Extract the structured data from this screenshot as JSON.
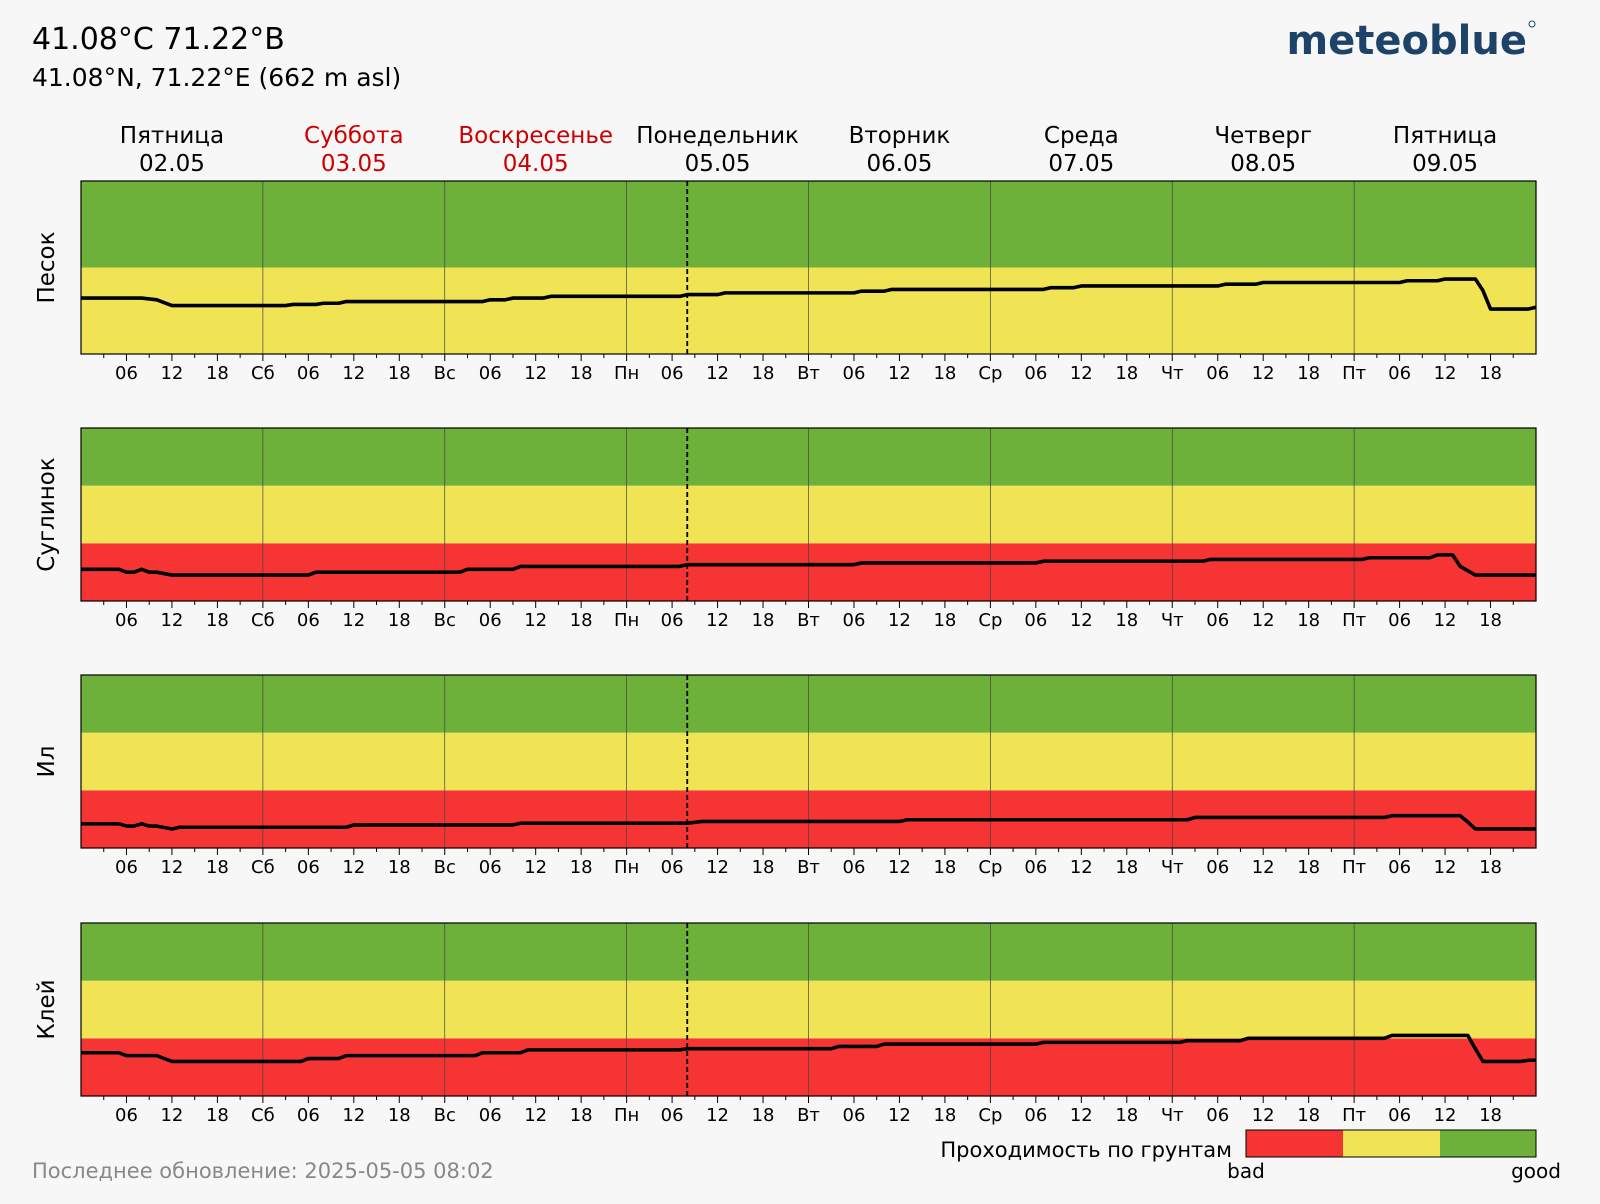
{
  "header": {
    "title": "41.08°C 71.22°B",
    "subtitle": "41.08°N, 71.22°E (662 m asl)",
    "logo": "meteoblue"
  },
  "days": [
    {
      "name": "Пятница",
      "date": "02.05",
      "weekend": false
    },
    {
      "name": "Суббота",
      "date": "03.05",
      "weekend": true
    },
    {
      "name": "Воскресенье",
      "date": "04.05",
      "weekend": true
    },
    {
      "name": "Понедельник",
      "date": "05.05",
      "weekend": false
    },
    {
      "name": "Вторник",
      "date": "06.05",
      "weekend": false
    },
    {
      "name": "Среда",
      "date": "07.05",
      "weekend": false
    },
    {
      "name": "Четверг",
      "date": "08.05",
      "weekend": false
    },
    {
      "name": "Пятница",
      "date": "09.05",
      "weekend": false
    }
  ],
  "colors": {
    "bad": "#f73434",
    "medium": "#f0e454",
    "good": "#6db03a",
    "weekend_text": "#cc0000",
    "line": "#000000",
    "footer_text": "#888888"
  },
  "legend": {
    "title": "Проходимость по грунтам",
    "bad_label": "bad",
    "good_label": "good"
  },
  "footer": {
    "last_update": "Последнее обновление: 2025-05-05 08:02"
  },
  "chart_data": {
    "type": "line",
    "x_axis": {
      "unit": "hour",
      "range_hours": [
        0,
        192
      ],
      "now_hour": 80,
      "tick_labels": [
        "06",
        "12",
        "18",
        "Сб",
        "06",
        "12",
        "18",
        "Вс",
        "06",
        "12",
        "18",
        "Пн",
        "06",
        "12",
        "18",
        "Вт",
        "06",
        "12",
        "18",
        "Ср",
        "06",
        "12",
        "18",
        "Чт",
        "06",
        "12",
        "18",
        "Пт",
        "06",
        "12",
        "18"
      ],
      "grid": "vertical lines at day boundaries"
    },
    "y_axis": {
      "range": [
        0,
        3
      ],
      "tick_labels": false
    },
    "panels": [
      {
        "name": "Песок",
        "bands": [
          {
            "rating": "medium",
            "from": 0,
            "to": 1.5
          },
          {
            "rating": "good",
            "from": 1.5,
            "to": 3
          }
        ],
        "series": [
          [
            0,
            0.97
          ],
          [
            8,
            0.97
          ],
          [
            10,
            0.94
          ],
          [
            12,
            0.84
          ],
          [
            27,
            0.84
          ],
          [
            28,
            0.86
          ],
          [
            31,
            0.86
          ],
          [
            32,
            0.88
          ],
          [
            34,
            0.88
          ],
          [
            35,
            0.91
          ],
          [
            53,
            0.91
          ],
          [
            54,
            0.94
          ],
          [
            56,
            0.94
          ],
          [
            57,
            0.97
          ],
          [
            61,
            0.97
          ],
          [
            62,
            1.0
          ],
          [
            79,
            1.0
          ],
          [
            80,
            1.03
          ],
          [
            84,
            1.03
          ],
          [
            85,
            1.06
          ],
          [
            102,
            1.06
          ],
          [
            103,
            1.09
          ],
          [
            106,
            1.09
          ],
          [
            107,
            1.12
          ],
          [
            127,
            1.12
          ],
          [
            128,
            1.15
          ],
          [
            131,
            1.15
          ],
          [
            132,
            1.18
          ],
          [
            150,
            1.18
          ],
          [
            151,
            1.21
          ],
          [
            155,
            1.21
          ],
          [
            156,
            1.24
          ],
          [
            174,
            1.24
          ],
          [
            175,
            1.27
          ],
          [
            179,
            1.27
          ],
          [
            180,
            1.3
          ],
          [
            184,
            1.3
          ],
          [
            185,
            1.1
          ],
          [
            186,
            0.78
          ],
          [
            191,
            0.78
          ],
          [
            192,
            0.81
          ]
        ]
      },
      {
        "name": "Суглинок",
        "bands": [
          {
            "rating": "bad",
            "from": 0,
            "to": 1
          },
          {
            "rating": "medium",
            "from": 1,
            "to": 2
          },
          {
            "rating": "good",
            "from": 2,
            "to": 3
          }
        ],
        "series": [
          [
            0,
            0.55
          ],
          [
            5,
            0.55
          ],
          [
            6,
            0.5
          ],
          [
            7,
            0.5
          ],
          [
            8,
            0.55
          ],
          [
            9,
            0.5
          ],
          [
            10,
            0.5
          ],
          [
            12,
            0.45
          ],
          [
            30,
            0.45
          ],
          [
            31,
            0.5
          ],
          [
            50,
            0.5
          ],
          [
            51,
            0.55
          ],
          [
            57,
            0.55
          ],
          [
            58,
            0.6
          ],
          [
            79,
            0.6
          ],
          [
            80,
            0.63
          ],
          [
            102,
            0.63
          ],
          [
            103,
            0.66
          ],
          [
            126,
            0.66
          ],
          [
            127,
            0.69
          ],
          [
            148,
            0.69
          ],
          [
            149,
            0.72
          ],
          [
            169,
            0.72
          ],
          [
            170,
            0.75
          ],
          [
            178,
            0.75
          ],
          [
            179,
            0.8
          ],
          [
            181,
            0.8
          ],
          [
            182,
            0.6
          ],
          [
            184,
            0.45
          ],
          [
            192,
            0.45
          ]
        ]
      },
      {
        "name": "Ил",
        "bands": [
          {
            "rating": "bad",
            "from": 0,
            "to": 1
          },
          {
            "rating": "medium",
            "from": 1,
            "to": 2
          },
          {
            "rating": "good",
            "from": 2,
            "to": 3
          }
        ],
        "series": [
          [
            0,
            0.42
          ],
          [
            5,
            0.42
          ],
          [
            6,
            0.38
          ],
          [
            7,
            0.38
          ],
          [
            8,
            0.42
          ],
          [
            9,
            0.38
          ],
          [
            10,
            0.38
          ],
          [
            12,
            0.33
          ],
          [
            13,
            0.36
          ],
          [
            35,
            0.36
          ],
          [
            36,
            0.4
          ],
          [
            57,
            0.4
          ],
          [
            58,
            0.43
          ],
          [
            80,
            0.43
          ],
          [
            82,
            0.46
          ],
          [
            108,
            0.46
          ],
          [
            109,
            0.49
          ],
          [
            146,
            0.49
          ],
          [
            147,
            0.53
          ],
          [
            172,
            0.53
          ],
          [
            173,
            0.56
          ],
          [
            182,
            0.56
          ],
          [
            183,
            0.45
          ],
          [
            184,
            0.33
          ],
          [
            192,
            0.33
          ]
        ]
      },
      {
        "name": "Клей",
        "bands": [
          {
            "rating": "bad",
            "from": 0,
            "to": 1
          },
          {
            "rating": "medium",
            "from": 1,
            "to": 2
          },
          {
            "rating": "good",
            "from": 2,
            "to": 3
          }
        ],
        "series": [
          [
            0,
            0.75
          ],
          [
            5,
            0.75
          ],
          [
            6,
            0.7
          ],
          [
            10,
            0.7
          ],
          [
            12,
            0.6
          ],
          [
            29,
            0.6
          ],
          [
            30,
            0.65
          ],
          [
            34,
            0.65
          ],
          [
            35,
            0.7
          ],
          [
            52,
            0.7
          ],
          [
            53,
            0.75
          ],
          [
            58,
            0.75
          ],
          [
            59,
            0.8
          ],
          [
            79,
            0.8
          ],
          [
            80,
            0.82
          ],
          [
            99,
            0.82
          ],
          [
            100,
            0.86
          ],
          [
            105,
            0.86
          ],
          [
            106,
            0.9
          ],
          [
            126,
            0.9
          ],
          [
            127,
            0.93
          ],
          [
            145,
            0.93
          ],
          [
            146,
            0.96
          ],
          [
            153,
            0.96
          ],
          [
            154,
            1.0
          ],
          [
            172,
            1.0
          ],
          [
            173,
            1.05
          ],
          [
            183,
            1.05
          ],
          [
            184,
            0.82
          ],
          [
            185,
            0.6
          ],
          [
            190,
            0.6
          ],
          [
            191,
            0.62
          ],
          [
            192,
            0.62
          ]
        ]
      }
    ]
  }
}
